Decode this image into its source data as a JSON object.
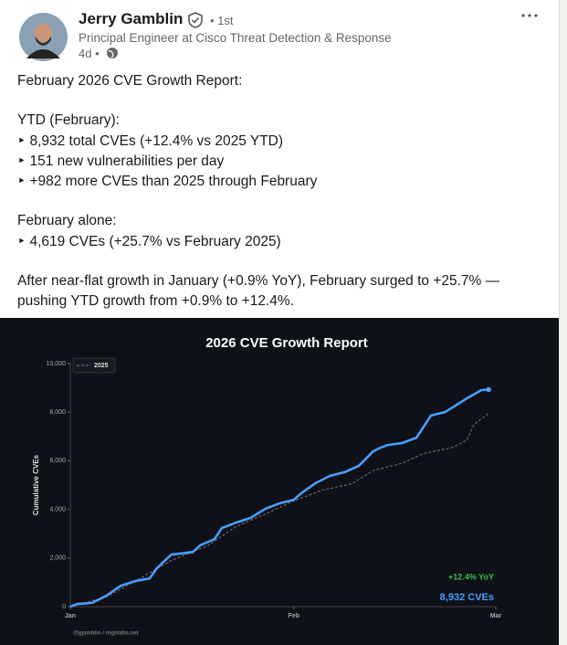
{
  "author": {
    "name": "Jerry Gamblin",
    "degree": "• 1st",
    "headline": "Principal Engineer at Cisco Threat Detection & Response",
    "time": "4d •"
  },
  "post": {
    "lines": [
      "February 2026 CVE Growth Report:",
      "YTD (February):",
      "‣ 8,932 total CVEs (+12.4% vs 2025 YTD)",
      "‣ 151 new vulnerabilities per day",
      "‣ +982 more CVEs than 2025 through February",
      "February alone:",
      "‣ 4,619 CVEs (+25.7% vs February 2025)",
      "After near-flat growth in January (+0.9% YoY), February surged to +25.7% —",
      "pushing YTD growth from +0.9% to +12.4%."
    ]
  },
  "chart_data": {
    "type": "line",
    "title": "2026 CVE Growth Report",
    "y_label": "Cumulative CVEs",
    "xlim": [
      1,
      60
    ],
    "xticks": [
      {
        "value": 1,
        "label": "Jan"
      },
      {
        "value": 32,
        "label": "Feb"
      },
      {
        "value": 60,
        "label": "Mar"
      }
    ],
    "ylim": [
      0,
      10000
    ],
    "yticks": [
      0,
      {
        "value": 2000,
        "label": "2,000"
      },
      {
        "value": 4000,
        "label": "4,000"
      },
      {
        "value": 6000,
        "label": "6,000"
      },
      {
        "value": 8000,
        "label": "8,000"
      },
      {
        "value": 10000,
        "label": "10,000"
      }
    ],
    "series": [
      {
        "color": "#4a9eff",
        "x": [
          1,
          2,
          4,
          6,
          8,
          10,
          12,
          13,
          15,
          18,
          19,
          21,
          22,
          24,
          26,
          28,
          30,
          32,
          33,
          35,
          37,
          39,
          41,
          43,
          44,
          45,
          47,
          49,
          51,
          53,
          56,
          58,
          59
        ],
        "values": [
          0,
          110,
          150,
          450,
          860,
          1050,
          1160,
          1580,
          2140,
          2250,
          2520,
          2780,
          3230,
          3460,
          3650,
          4020,
          4250,
          4400,
          4660,
          5080,
          5380,
          5530,
          5790,
          6390,
          6540,
          6650,
          6730,
          6950,
          7860,
          8010,
          8570,
          8910,
          8932
        ]
      },
      {
        "name": "2025",
        "color": "#777777",
        "x": [
          1,
          6,
          10,
          15,
          20,
          24,
          28,
          32,
          36,
          40,
          43,
          47,
          50,
          54,
          56,
          57,
          59
        ],
        "values": [
          0,
          400,
          1050,
          1900,
          2500,
          3300,
          3800,
          4350,
          4800,
          5050,
          5600,
          5900,
          6300,
          6550,
          6850,
          7500,
          7950
        ]
      }
    ],
    "annotations": [
      "+12.4% YoY",
      "8,932 CVEs",
      "@jgamblin / rogolabs.net"
    ]
  }
}
